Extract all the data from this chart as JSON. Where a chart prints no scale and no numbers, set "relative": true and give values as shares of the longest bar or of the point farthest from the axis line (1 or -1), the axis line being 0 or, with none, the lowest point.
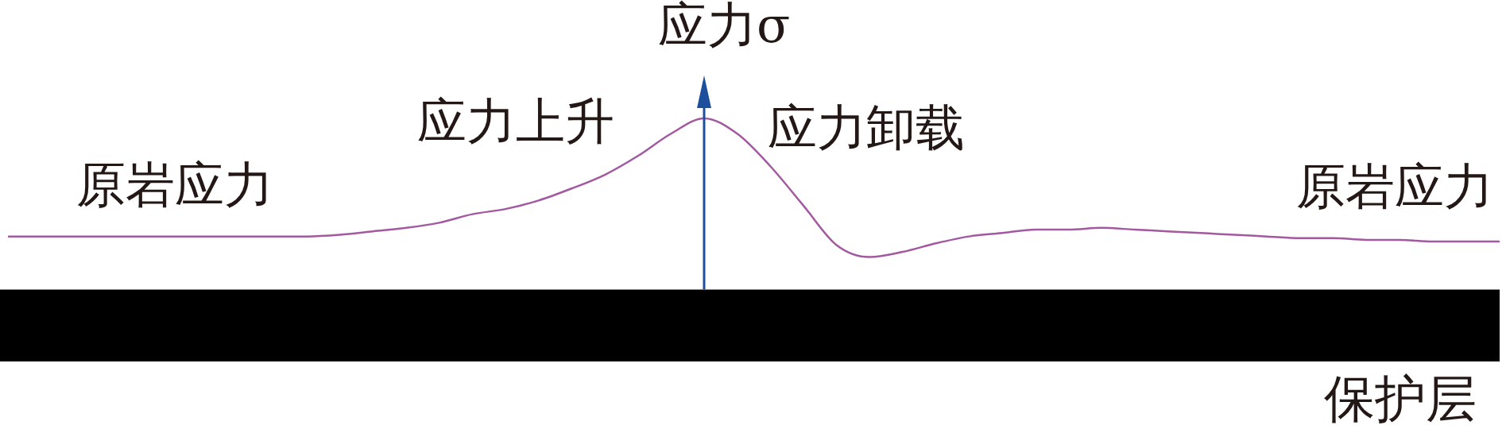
{
  "chart_data": {
    "type": "line",
    "ylabel": "应力σ",
    "relative": true,
    "tick_labels": false,
    "marker": "none",
    "categories": [
      null,
      null,
      null,
      null,
      null,
      null,
      null,
      null,
      null,
      null,
      null,
      null,
      null,
      null,
      null,
      null,
      null,
      null,
      null,
      null,
      null,
      null,
      null,
      null,
      null,
      null,
      null,
      null,
      null,
      null,
      null,
      null,
      null,
      null,
      null,
      null,
      null,
      null,
      null,
      null,
      null,
      null,
      null,
      null,
      null,
      null
    ],
    "series": [
      {
        "color": "#a2599f",
        "values": [
          0.31,
          0.31,
          0.31,
          0.31,
          0.31,
          0.31,
          0.31,
          0.31,
          0.31,
          0.31,
          0.32,
          0.34,
          0.36,
          0.39,
          0.44,
          0.47,
          0.52,
          0.59,
          0.67,
          0.78,
          0.91,
          1.0,
          0.91,
          0.72,
          0.49,
          0.26,
          0.19,
          0.22,
          0.27,
          0.31,
          0.33,
          0.35,
          0.35,
          0.36,
          0.35,
          0.34,
          0.33,
          0.32,
          0.31,
          0.3,
          0.3,
          0.29,
          0.29,
          0.28,
          0.28,
          0.28
        ]
      }
    ],
    "annotations": [
      "原岩应力",
      "应力上升",
      "应力卸载",
      "原岩应力"
    ],
    "bands": [
      {
        "axis": "y",
        "from": -0.42,
        "to": 0,
        "label": "保护层",
        "color": "#000000"
      }
    ]
  }
}
